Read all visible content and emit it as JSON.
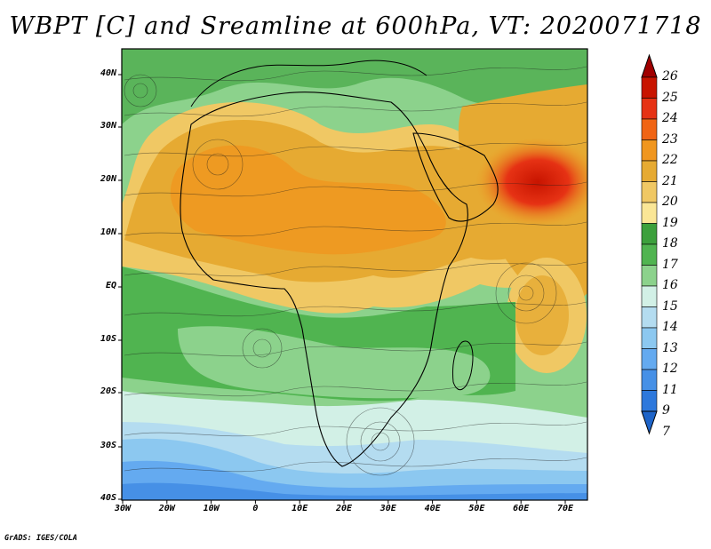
{
  "title": "WBPT [C] and Sreamline at 600hPa, VT: 2020071718",
  "credit": "GrADS: IGES/COLA",
  "map": {
    "lat_labels": [
      "40N",
      "30N",
      "20N",
      "10N",
      "EQ",
      "10S",
      "20S",
      "30S",
      "40S"
    ],
    "lon_labels": [
      "30W",
      "20W",
      "10W",
      "0",
      "10E",
      "20E",
      "30E",
      "40E",
      "50E",
      "60E",
      "70E"
    ],
    "lon_range": [
      -30,
      75
    ],
    "lat_range": [
      -40,
      45
    ]
  },
  "colorbar": {
    "labels": [
      "26",
      "25",
      "24",
      "23",
      "22",
      "21",
      "20",
      "19",
      "18",
      "17",
      "16",
      "15",
      "14",
      "13",
      "12",
      "11",
      "9",
      "7"
    ],
    "colors": [
      "#a00000",
      "#c81400",
      "#e63214",
      "#f06414",
      "#f0961e",
      "#e6aa32",
      "#f0c864",
      "#fae696",
      "#3ca03c",
      "#50b450",
      "#8cd28c",
      "#d2f0e6",
      "#b4dcf0",
      "#8cc8f0",
      "#64aaf0",
      "#4690e6",
      "#2d78dc",
      "#1e64c8"
    ]
  }
}
